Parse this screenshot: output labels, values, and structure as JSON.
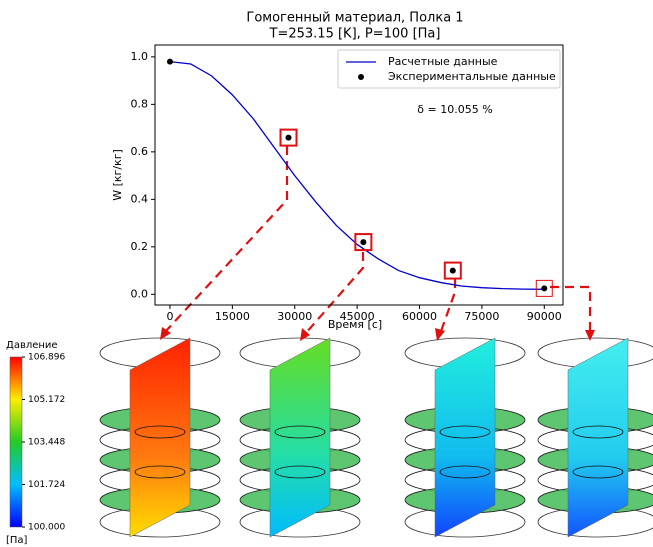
{
  "chart_data": {
    "type": "line",
    "title": "Гомогенный материал, Полка 1",
    "subtitle": "T=253.15 [K],  P=100 [Па]",
    "xlabel": "Время [с]",
    "ylabel": "W [кг/кг]",
    "annotation": "δ = 10.055 %",
    "xlim": [
      -3600,
      94500
    ],
    "ylim": [
      -0.045,
      1.05
    ],
    "xticks": [
      0,
      15000,
      30000,
      45000,
      60000,
      75000,
      90000
    ],
    "yticks": [
      {
        "value": 0,
        "label": "0.0"
      },
      0.2,
      0.4,
      0.6,
      0.8,
      {
        "value": 1,
        "label": "1.0"
      }
    ],
    "legend": "upper right",
    "series": [
      {
        "name": "Расчетные данные",
        "color": "#0000cc",
        "type": "line",
        "x": [
          0,
          5000,
          10000,
          15000,
          20000,
          25000,
          30000,
          35000,
          40000,
          45000,
          50000,
          55000,
          60000,
          65000,
          70000,
          75000,
          80000,
          85000,
          90000
        ],
        "values": [
          0.98,
          0.97,
          0.92,
          0.84,
          0.74,
          0.62,
          0.5,
          0.39,
          0.29,
          0.21,
          0.15,
          0.1,
          0.07,
          0.05,
          0.035,
          0.028,
          0.024,
          0.022,
          0.021
        ]
      },
      {
        "name": "Экспериментальные данные",
        "color": "#000000",
        "type": "scatter",
        "x": [
          0,
          28500,
          46500,
          68000,
          90000
        ],
        "values": [
          0.98,
          0.66,
          0.22,
          0.1,
          0.025
        ]
      }
    ]
  },
  "colorbar": {
    "title": "Давление",
    "unit": "[Па]",
    "lim": [
      100,
      106.896
    ],
    "ticks": [
      {
        "value": 106.896,
        "label": "106.896"
      },
      {
        "value": 105.172,
        "label": "105.172"
      },
      {
        "value": 103.448,
        "label": "103.448"
      },
      {
        "value": 101.724,
        "label": "101.724"
      },
      {
        "value": 100,
        "label": "100.000"
      }
    ]
  }
}
